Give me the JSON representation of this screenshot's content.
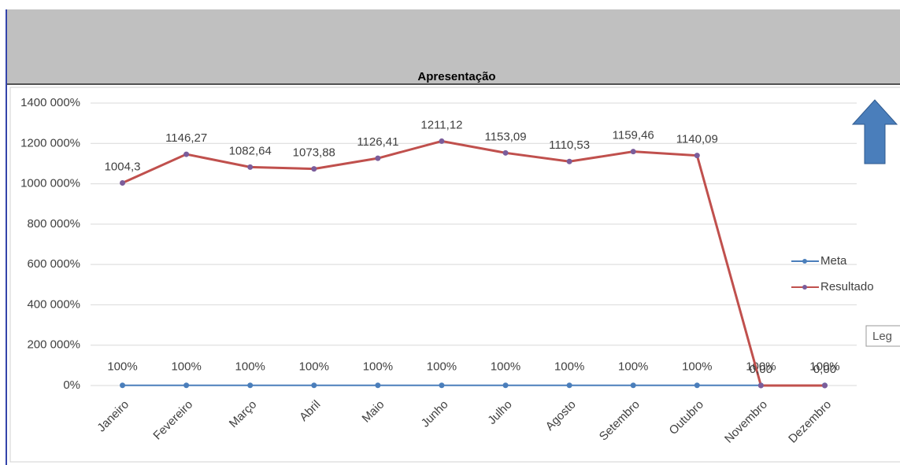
{
  "chart_data": {
    "type": "line",
    "title": "Apresentação",
    "categories": [
      "Janeiro",
      "Fevereiro",
      "Março",
      "Abril",
      "Maio",
      "Junho",
      "Julho",
      "Agosto",
      "Setembro",
      "Outubro",
      "Novembro",
      "Dezembro"
    ],
    "series": [
      {
        "name": "Meta",
        "color": "#4a7ebb",
        "marker_color": "#4a7ebb",
        "values": [
          100,
          100,
          100,
          100,
          100,
          100,
          100,
          100,
          100,
          100,
          100,
          100
        ],
        "value_labels": [
          "100%",
          "100%",
          "100%",
          "100%",
          "100%",
          "100%",
          "100%",
          "100%",
          "100%",
          "100%",
          "100%",
          "100%"
        ]
      },
      {
        "name": "Resultado",
        "color": "#c0504d",
        "marker_color": "#7b5d9b",
        "values": [
          100430,
          114627,
          108264,
          107388,
          112641,
          121112,
          115309,
          111053,
          115946,
          114009,
          0,
          0
        ],
        "value_labels": [
          "1004,3",
          "1146,27",
          "1082,64",
          "1073,88",
          "1126,41",
          "1211,12",
          "1153,09",
          "1110,53",
          "1159,46",
          "1140,09",
          "0,00",
          "0,00"
        ]
      }
    ],
    "ylim": [
      0,
      140000
    ],
    "yticks": [
      {
        "value": 0,
        "label": "0%"
      },
      {
        "value": 20000,
        "label": "200 000%"
      },
      {
        "value": 40000,
        "label": "400 000%"
      },
      {
        "value": 60000,
        "label": "600 000%"
      },
      {
        "value": 80000,
        "label": "800 000%"
      },
      {
        "value": 100000,
        "label": "1000 000%"
      },
      {
        "value": 120000,
        "label": "1200 000%"
      },
      {
        "value": 140000,
        "label": "1400 000%"
      }
    ],
    "grid": true,
    "legend": "right"
  },
  "tooltip": "Leg"
}
